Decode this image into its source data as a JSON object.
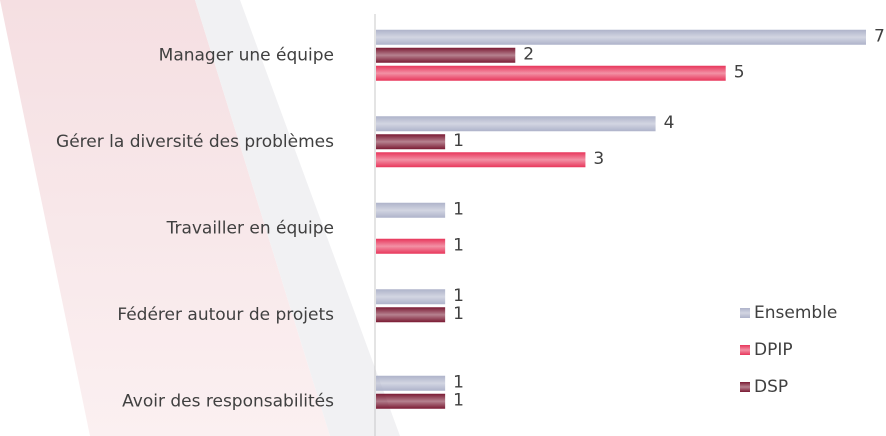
{
  "chart_data": {
    "type": "bar",
    "orientation": "horizontal",
    "categories": [
      "Manager une équipe",
      "Gérer la diversité des problèmes",
      "Travailler en équipe",
      "Fédérer autour de projets",
      "Avoir des responsabilités"
    ],
    "series": [
      {
        "name": "Ensemble",
        "color": "#aeb3ca",
        "values": [
          7,
          4,
          1,
          1,
          1
        ]
      },
      {
        "name": "DPIP",
        "color": "#e8365b",
        "values": [
          5,
          3,
          1,
          null,
          null
        ]
      },
      {
        "name": "DSP",
        "color": "#7a1a33",
        "values": [
          2,
          1,
          null,
          1,
          1
        ]
      }
    ],
    "legend": "right"
  }
}
